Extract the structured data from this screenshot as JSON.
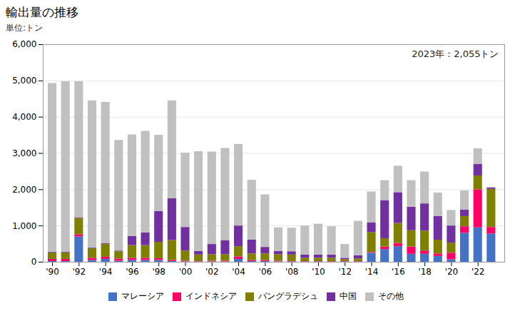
{
  "chart_data": {
    "type": "bar",
    "stacked": true,
    "title": "輸出量の推移",
    "ylabel": "単位:トン",
    "annotation": "2023年：2,055トン",
    "x": [
      1990,
      1991,
      1992,
      1993,
      1994,
      1995,
      1996,
      1997,
      1998,
      1999,
      2000,
      2001,
      2002,
      2003,
      2004,
      2005,
      2006,
      2007,
      2008,
      2009,
      2010,
      2011,
      2012,
      2013,
      2014,
      2015,
      2016,
      2017,
      2018,
      2019,
      2020,
      2021,
      2022,
      2023
    ],
    "series": [
      {
        "name": "マレーシア",
        "color": "#4472C4",
        "values": [
          20,
          20,
          700,
          50,
          80,
          30,
          50,
          50,
          50,
          20,
          10,
          10,
          10,
          10,
          80,
          20,
          20,
          10,
          10,
          10,
          10,
          10,
          10,
          10,
          250,
          350,
          430,
          220,
          220,
          160,
          70,
          800,
          950,
          780
        ]
      },
      {
        "name": "インドネシア",
        "color": "#FF0066",
        "values": [
          60,
          60,
          60,
          60,
          60,
          60,
          60,
          60,
          50,
          30,
          20,
          10,
          20,
          20,
          70,
          30,
          30,
          20,
          10,
          10,
          10,
          10,
          10,
          10,
          20,
          70,
          90,
          200,
          90,
          70,
          180,
          180,
          1050,
          180
        ]
      },
      {
        "name": "バングラデシュ",
        "color": "#7F7F00",
        "values": [
          180,
          180,
          450,
          270,
          350,
          200,
          350,
          350,
          450,
          550,
          280,
          180,
          180,
          180,
          280,
          180,
          180,
          180,
          180,
          90,
          90,
          90,
          50,
          70,
          550,
          230,
          550,
          450,
          550,
          380,
          280,
          280,
          380,
          1050
        ]
      },
      {
        "name": "中国",
        "color": "#7030A0",
        "values": [
          20,
          20,
          20,
          20,
          20,
          20,
          250,
          350,
          850,
          1150,
          650,
          100,
          280,
          380,
          570,
          380,
          180,
          90,
          90,
          90,
          90,
          90,
          40,
          90,
          270,
          1050,
          850,
          650,
          750,
          650,
          470,
          180,
          320,
          40
        ]
      },
      {
        "name": "その他",
        "color": "#C0C0C0",
        "values": [
          4650,
          4700,
          3750,
          4050,
          3900,
          3050,
          2800,
          2800,
          2100,
          2700,
          2050,
          2750,
          2550,
          2550,
          2250,
          1650,
          1450,
          650,
          650,
          800,
          850,
          780,
          380,
          950,
          850,
          550,
          730,
          730,
          880,
          650,
          430,
          530,
          430,
          10
        ]
      }
    ],
    "xlim": [
      1989.3,
      2024.0
    ],
    "xticks": [
      {
        "value": 1990,
        "label": "'90"
      },
      {
        "value": 1992,
        "label": "'92"
      },
      {
        "value": 1994,
        "label": "'94"
      },
      {
        "value": 1996,
        "label": "'96"
      },
      {
        "value": 1998,
        "label": "'98"
      },
      {
        "value": 2000,
        "label": "'00"
      },
      {
        "value": 2002,
        "label": "'02"
      },
      {
        "value": 2004,
        "label": "'04"
      },
      {
        "value": 2006,
        "label": "'06"
      },
      {
        "value": 2008,
        "label": "'08"
      },
      {
        "value": 2010,
        "label": "'10"
      },
      {
        "value": 2012,
        "label": "'12"
      },
      {
        "value": 2014,
        "label": "'14"
      },
      {
        "value": 2016,
        "label": "'16"
      },
      {
        "value": 2018,
        "label": "'18"
      },
      {
        "value": 2020,
        "label": "'20"
      },
      {
        "value": 2022,
        "label": "'22"
      }
    ],
    "ylim": [
      0,
      6000
    ],
    "yticks": [
      0,
      {
        "value": 1000,
        "label": "1,000"
      },
      {
        "value": 2000,
        "label": "2,000"
      },
      {
        "value": 3000,
        "label": "3,000"
      },
      {
        "value": 4000,
        "label": "4,000"
      },
      {
        "value": 5000,
        "label": "5,000"
      },
      {
        "value": 6000,
        "label": "6,000"
      }
    ],
    "grid": true,
    "legend": "bottom"
  }
}
